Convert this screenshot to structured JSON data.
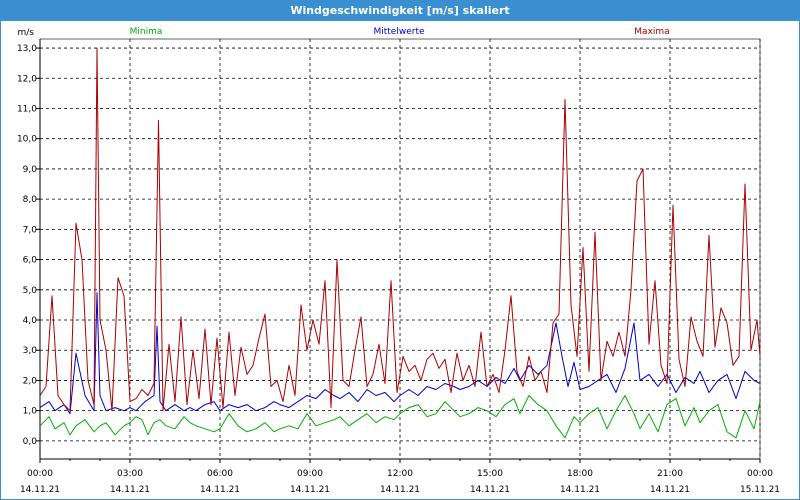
{
  "window": {
    "title": "Windgeschwindigkeit [m/s] skaliert"
  },
  "chart_data": {
    "type": "line",
    "ylabel": "m/s",
    "ylim": [
      -0.6,
      13.3
    ],
    "y_ticks": [
      "0,0",
      "1,0",
      "2,0",
      "3,0",
      "4,0",
      "5,0",
      "6,0",
      "7,0",
      "8,0",
      "9,0",
      "10,0",
      "11,0",
      "12,0",
      "13,0"
    ],
    "x_ticks": [
      {
        "time": "00:00",
        "date": "14.11.21"
      },
      {
        "time": "03:00",
        "date": "14.11.21"
      },
      {
        "time": "06:00",
        "date": "14.11.21"
      },
      {
        "time": "09:00",
        "date": "14.11.21"
      },
      {
        "time": "12:00",
        "date": "14.11.21"
      },
      {
        "time": "15:00",
        "date": "14.11.21"
      },
      {
        "time": "18:00",
        "date": "14.11.21"
      },
      {
        "time": "21:00",
        "date": "14.11.21"
      },
      {
        "time": "00:00",
        "date": "15.11.21"
      }
    ],
    "x_unit_count": 24,
    "grid": true,
    "legend_position": "top",
    "series": [
      {
        "name": "Minima",
        "color": "#00b000",
        "x": [
          0,
          0.3,
          0.5,
          0.8,
          1.0,
          1.2,
          1.5,
          1.8,
          2.0,
          2.2,
          2.5,
          2.8,
          3.0,
          3.2,
          3.4,
          3.6,
          3.8,
          4.0,
          4.2,
          4.5,
          4.8,
          5.0,
          5.2,
          5.5,
          5.8,
          6.0,
          6.3,
          6.6,
          6.9,
          7.2,
          7.5,
          7.8,
          8.0,
          8.3,
          8.6,
          8.9,
          9.2,
          9.5,
          9.8,
          10.0,
          10.3,
          10.6,
          10.9,
          11.2,
          11.5,
          11.8,
          12.0,
          12.3,
          12.6,
          12.9,
          13.2,
          13.5,
          13.8,
          14.0,
          14.3,
          14.6,
          14.9,
          15.2,
          15.5,
          15.8,
          16.0,
          16.3,
          16.6,
          16.9,
          17.2,
          17.5,
          17.8,
          18.0,
          18.3,
          18.6,
          18.9,
          19.2,
          19.5,
          19.8,
          20.0,
          20.3,
          20.6,
          20.9,
          21.2,
          21.5,
          21.8,
          22.0,
          22.3,
          22.6,
          22.9,
          23.2,
          23.5,
          23.8,
          24.0
        ],
        "values": [
          0.5,
          0.8,
          0.4,
          0.6,
          0.2,
          0.5,
          0.7,
          0.3,
          0.5,
          0.6,
          0.2,
          0.5,
          0.6,
          0.8,
          0.7,
          0.2,
          0.6,
          0.7,
          0.5,
          0.4,
          0.8,
          0.6,
          0.5,
          0.4,
          0.3,
          0.4,
          0.9,
          0.5,
          0.3,
          0.4,
          0.6,
          0.3,
          0.4,
          0.5,
          0.4,
          0.9,
          0.5,
          0.6,
          0.7,
          0.8,
          0.5,
          0.7,
          0.9,
          0.6,
          0.8,
          0.7,
          0.9,
          1.1,
          1.2,
          0.8,
          0.9,
          1.3,
          1.0,
          0.8,
          0.9,
          1.1,
          1.0,
          0.8,
          1.2,
          1.4,
          0.9,
          1.5,
          1.2,
          1.0,
          0.5,
          0.1,
          0.8,
          0.6,
          0.9,
          1.1,
          0.4,
          1.0,
          1.5,
          0.9,
          0.4,
          0.9,
          0.3,
          1.2,
          1.4,
          0.5,
          1.1,
          0.6,
          1.0,
          1.2,
          0.3,
          0.1,
          1.0,
          0.4,
          1.3
        ]
      },
      {
        "name": "Mittelwerte",
        "color": "#0000cc",
        "x": [
          0,
          0.3,
          0.5,
          0.8,
          1.0,
          1.2,
          1.5,
          1.8,
          1.9,
          2.0,
          2.2,
          2.5,
          2.8,
          3.0,
          3.2,
          3.5,
          3.8,
          3.9,
          4.0,
          4.2,
          4.5,
          4.8,
          5.0,
          5.2,
          5.5,
          5.8,
          6.0,
          6.3,
          6.6,
          6.9,
          7.2,
          7.5,
          7.8,
          8.0,
          8.3,
          8.6,
          8.9,
          9.2,
          9.5,
          9.8,
          10.0,
          10.3,
          10.6,
          10.9,
          11.2,
          11.5,
          11.8,
          12.0,
          12.3,
          12.6,
          12.9,
          13.2,
          13.5,
          13.8,
          14.0,
          14.3,
          14.6,
          14.9,
          15.2,
          15.5,
          15.8,
          16.0,
          16.3,
          16.6,
          16.9,
          17.2,
          17.4,
          17.6,
          17.8,
          18.0,
          18.3,
          18.6,
          18.9,
          19.2,
          19.5,
          19.8,
          20.0,
          20.3,
          20.6,
          20.9,
          21.2,
          21.5,
          21.8,
          22.0,
          22.3,
          22.6,
          22.9,
          23.2,
          23.5,
          23.8,
          24.0
        ],
        "values": [
          1.1,
          1.3,
          1.0,
          1.2,
          0.9,
          2.9,
          1.5,
          1.0,
          4.9,
          1.5,
          1.0,
          1.1,
          1.0,
          1.1,
          1.0,
          1.3,
          1.5,
          3.8,
          1.3,
          1.0,
          1.2,
          1.0,
          1.1,
          1.0,
          1.2,
          1.3,
          1.0,
          1.2,
          1.1,
          1.2,
          1.0,
          1.1,
          1.3,
          1.2,
          1.1,
          1.3,
          1.5,
          1.4,
          1.7,
          1.5,
          1.4,
          1.6,
          1.3,
          1.7,
          1.5,
          1.6,
          1.3,
          1.5,
          1.7,
          1.5,
          1.8,
          1.7,
          1.9,
          1.8,
          1.7,
          1.8,
          2.0,
          1.8,
          2.1,
          1.9,
          2.4,
          2.0,
          2.5,
          2.2,
          2.5,
          3.9,
          2.8,
          1.8,
          2.6,
          1.7,
          1.8,
          2.0,
          2.2,
          1.6,
          2.4,
          3.9,
          2.0,
          2.2,
          1.8,
          2.2,
          1.6,
          2.1,
          1.9,
          2.3,
          1.6,
          2.0,
          2.2,
          1.4,
          2.3,
          2.0,
          1.9
        ]
      },
      {
        "name": "Maxima",
        "color": "#aa0000",
        "x": [
          0,
          0.2,
          0.4,
          0.6,
          0.8,
          1.0,
          1.2,
          1.4,
          1.6,
          1.8,
          1.9,
          2.0,
          2.2,
          2.4,
          2.6,
          2.8,
          3.0,
          3.2,
          3.4,
          3.6,
          3.8,
          3.95,
          4.1,
          4.3,
          4.5,
          4.7,
          4.9,
          5.1,
          5.3,
          5.5,
          5.7,
          5.9,
          6.1,
          6.3,
          6.5,
          6.7,
          6.9,
          7.1,
          7.3,
          7.5,
          7.7,
          7.9,
          8.1,
          8.3,
          8.5,
          8.7,
          8.9,
          9.1,
          9.3,
          9.5,
          9.7,
          9.9,
          10.1,
          10.3,
          10.5,
          10.7,
          10.9,
          11.1,
          11.3,
          11.5,
          11.7,
          11.9,
          12.1,
          12.3,
          12.5,
          12.7,
          12.9,
          13.1,
          13.3,
          13.5,
          13.7,
          13.9,
          14.1,
          14.3,
          14.5,
          14.7,
          14.9,
          15.1,
          15.3,
          15.5,
          15.7,
          15.9,
          16.1,
          16.3,
          16.5,
          16.7,
          16.9,
          17.1,
          17.3,
          17.5,
          17.7,
          17.9,
          18.1,
          18.3,
          18.5,
          18.7,
          18.9,
          19.1,
          19.3,
          19.5,
          19.7,
          19.9,
          20.1,
          20.3,
          20.5,
          20.7,
          20.9,
          21.1,
          21.3,
          21.5,
          21.7,
          21.9,
          22.1,
          22.3,
          22.5,
          22.7,
          22.9,
          23.1,
          23.3,
          23.5,
          23.7,
          23.9,
          24.0
        ],
        "values": [
          1.5,
          1.8,
          4.8,
          1.5,
          1.2,
          1.0,
          7.2,
          6.0,
          2.0,
          1.2,
          13.0,
          4.0,
          3.0,
          1.0,
          5.4,
          4.8,
          1.3,
          1.4,
          1.7,
          1.5,
          1.9,
          10.6,
          1.0,
          3.2,
          1.3,
          4.1,
          1.2,
          3.0,
          1.4,
          3.7,
          1.2,
          3.4,
          1.1,
          3.6,
          1.5,
          3.1,
          2.2,
          2.5,
          3.4,
          4.2,
          1.8,
          2.0,
          1.3,
          2.5,
          1.5,
          4.5,
          3.0,
          4.0,
          3.2,
          5.3,
          1.1,
          6.0,
          2.0,
          1.8,
          3.0,
          4.1,
          1.8,
          2.2,
          3.2,
          1.9,
          5.3,
          1.6,
          2.8,
          2.3,
          2.5,
          2.0,
          2.7,
          2.9,
          2.4,
          2.7,
          1.6,
          2.9,
          2.0,
          2.5,
          1.8,
          3.6,
          1.8,
          2.2,
          1.6,
          3.0,
          4.8,
          2.3,
          1.8,
          2.8,
          2.0,
          2.3,
          1.6,
          3.9,
          4.2,
          11.3,
          4.5,
          2.8,
          6.4,
          2.3,
          6.9,
          2.0,
          3.3,
          2.8,
          3.6,
          2.8,
          5.0,
          8.6,
          9.0,
          3.2,
          5.3,
          2.5,
          1.9,
          7.8,
          2.7,
          1.8,
          4.1,
          3.3,
          2.8,
          6.8,
          3.1,
          4.4,
          3.9,
          2.5,
          2.8,
          8.5,
          3.0,
          4.0,
          2.8
        ]
      }
    ]
  }
}
